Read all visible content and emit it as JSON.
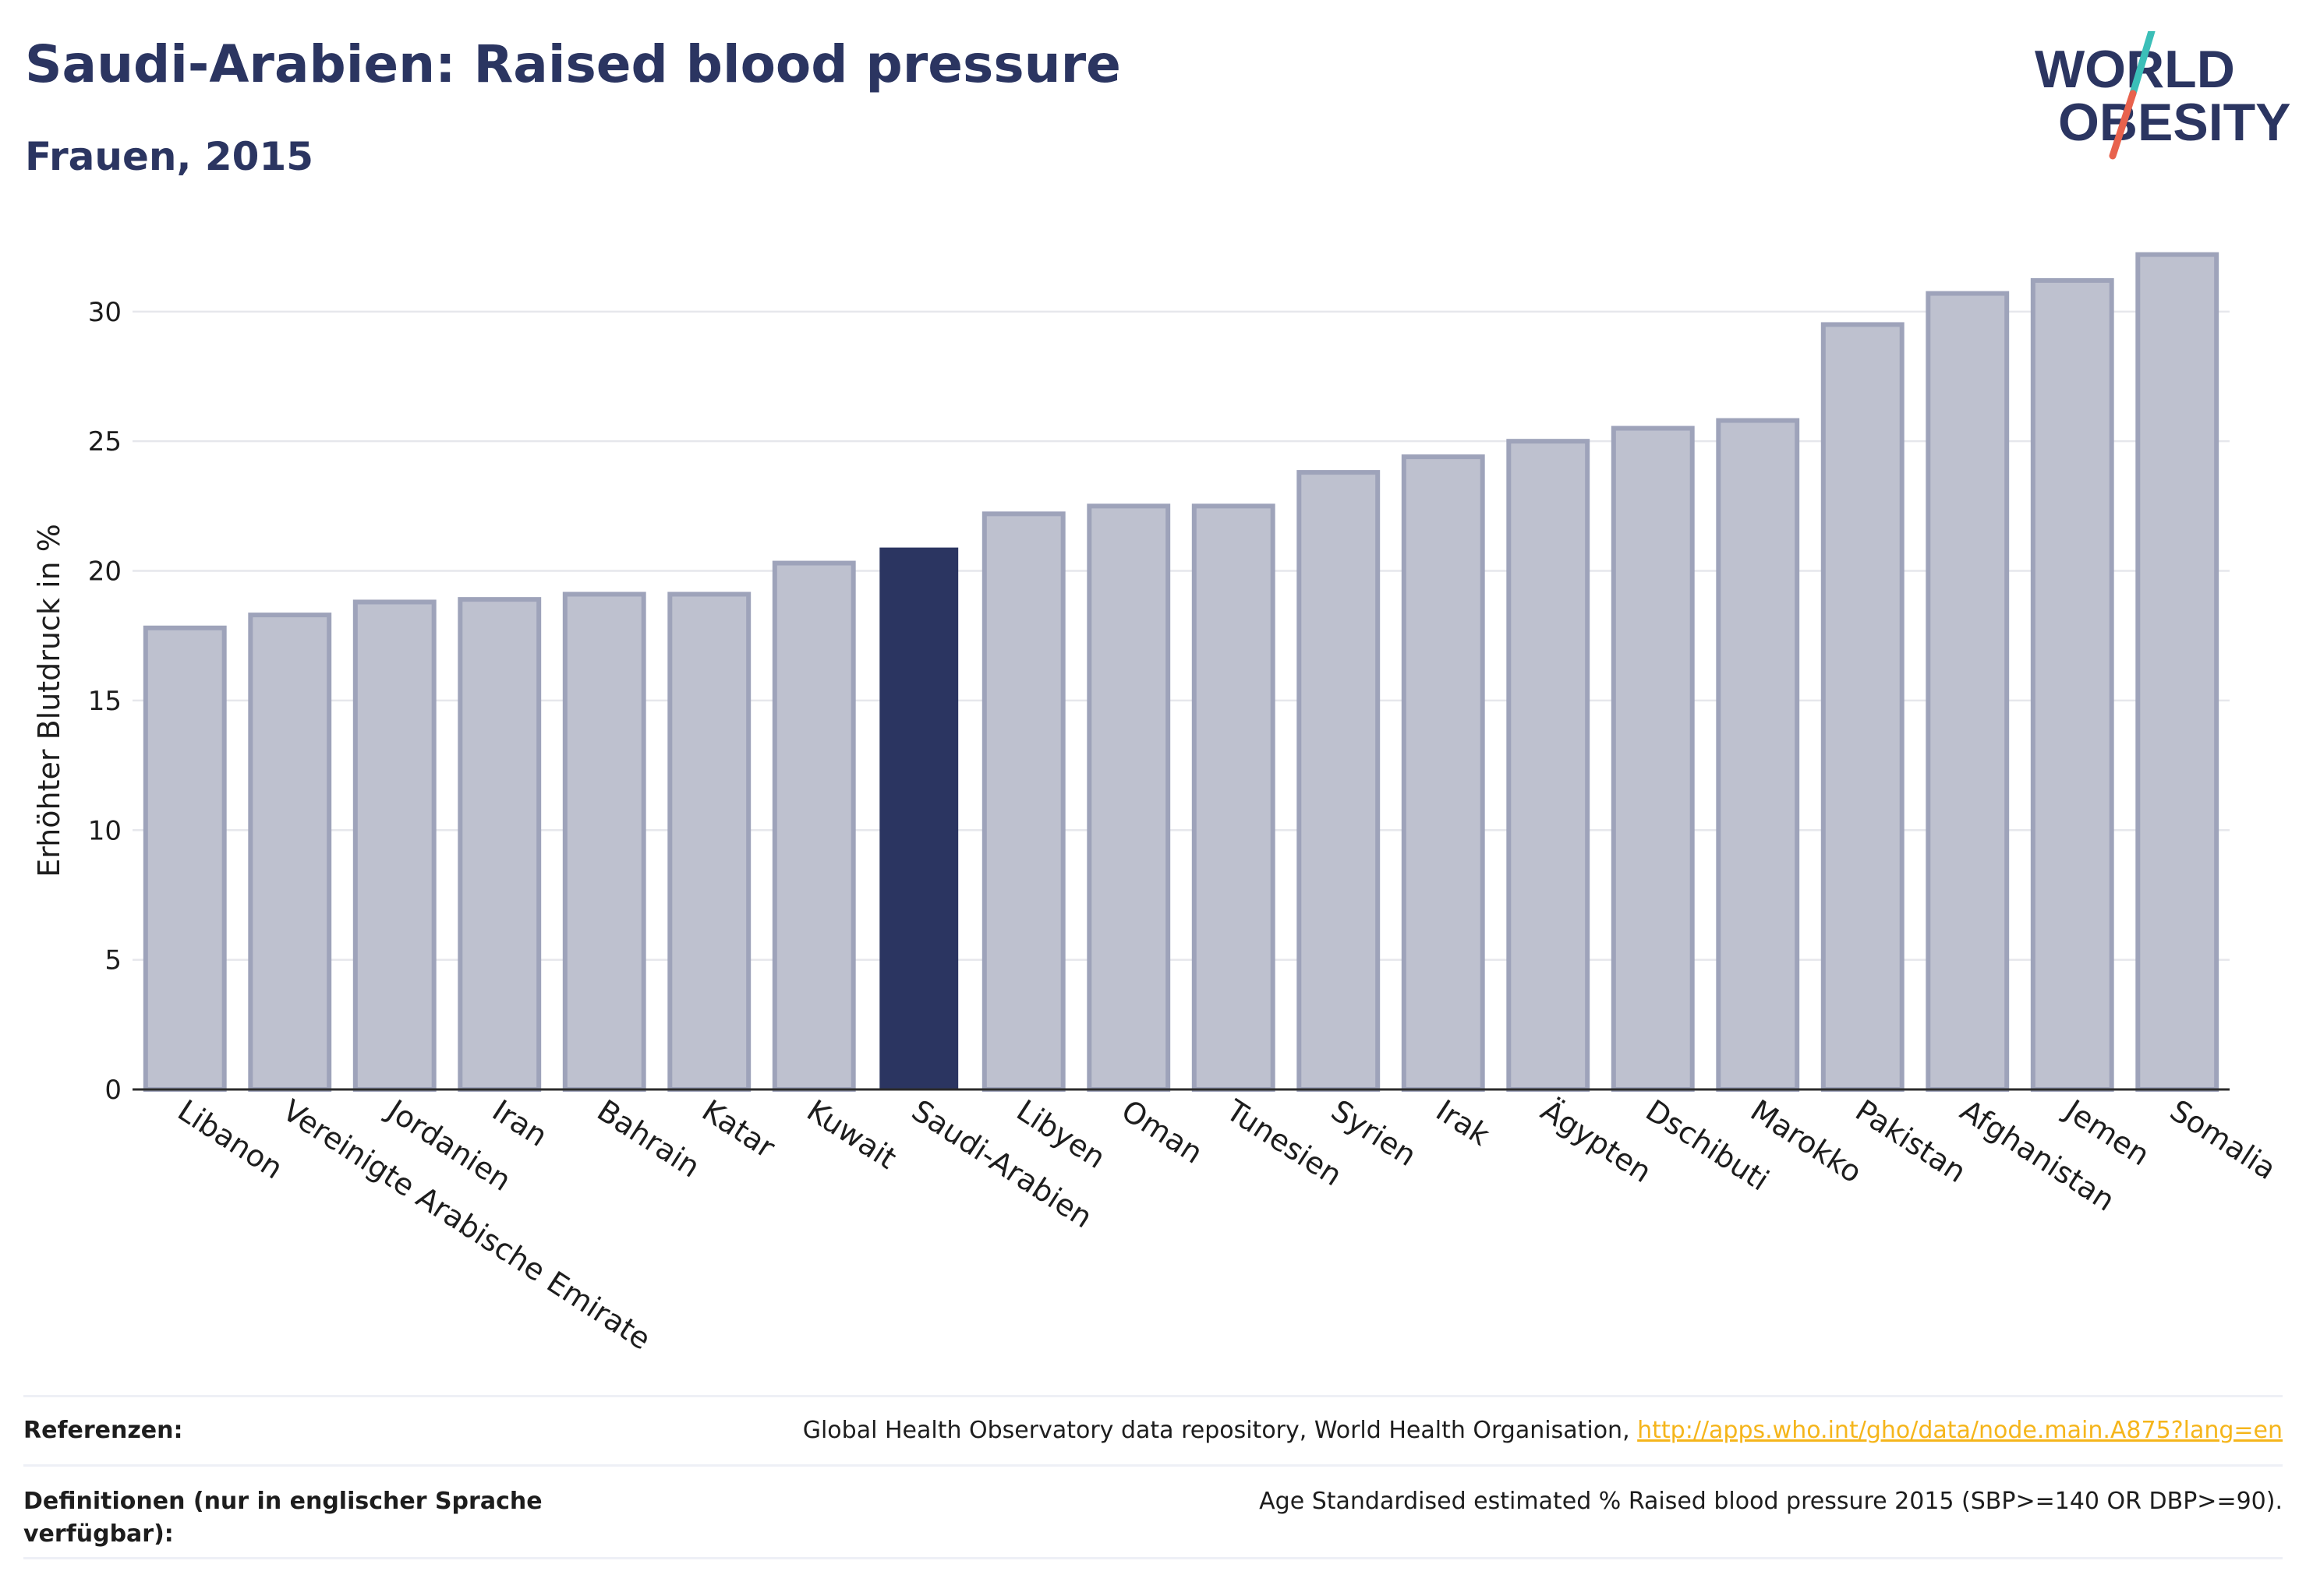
{
  "header": {
    "title": "Saudi-Arabien: Raised blood pressure",
    "subtitle": "Frauen, 2015"
  },
  "logo": {
    "line1": "WORLD",
    "line2": "OBESITY",
    "colors": {
      "text": "#2b3561",
      "slash_teal": "#3bbfb8",
      "slash_red": "#e8624d"
    }
  },
  "chart_data": {
    "type": "bar",
    "ylabel": "Erhöhter Blutdruck in %",
    "ylim": [
      0,
      33
    ],
    "yticks": [
      0,
      5,
      10,
      15,
      20,
      25,
      30
    ],
    "grid": true,
    "highlight": "Saudi-Arabien",
    "colors": {
      "bar": "#bec1cf",
      "bar_edge": "#9ea3ba",
      "highlight": "#2b3561",
      "grid": "#e6e7ec"
    },
    "categories": [
      "Libanon",
      "Vereinigte Arabische Emirate",
      "Jordanien",
      "Iran",
      "Bahrain",
      "Katar",
      "Kuwait",
      "Saudi-Arabien",
      "Libyen",
      "Oman",
      "Tunesien",
      "Syrien",
      "Irak",
      "Ägypten",
      "Dschibuti",
      "Marokko",
      "Pakistan",
      "Afghanistan",
      "Jemen",
      "Somalia"
    ],
    "values": [
      17.8,
      18.3,
      18.8,
      18.9,
      19.1,
      19.1,
      20.3,
      20.9,
      22.2,
      22.5,
      22.5,
      23.8,
      24.4,
      25.0,
      25.5,
      25.8,
      29.5,
      30.7,
      31.2,
      32.2
    ]
  },
  "footer": {
    "references_label": "Referenzen:",
    "references_text": "Global Health Observatory data repository, World Health Organisation, ",
    "references_link": "http://apps.who.int/gho/data/node.main.A875?lang=en",
    "definitions_label": "Definitionen (nur in englischer Sprache verfügbar):",
    "definitions_text": "Age Standardised estimated % Raised blood pressure 2015 (SBP>=140 OR DBP>=90)."
  }
}
